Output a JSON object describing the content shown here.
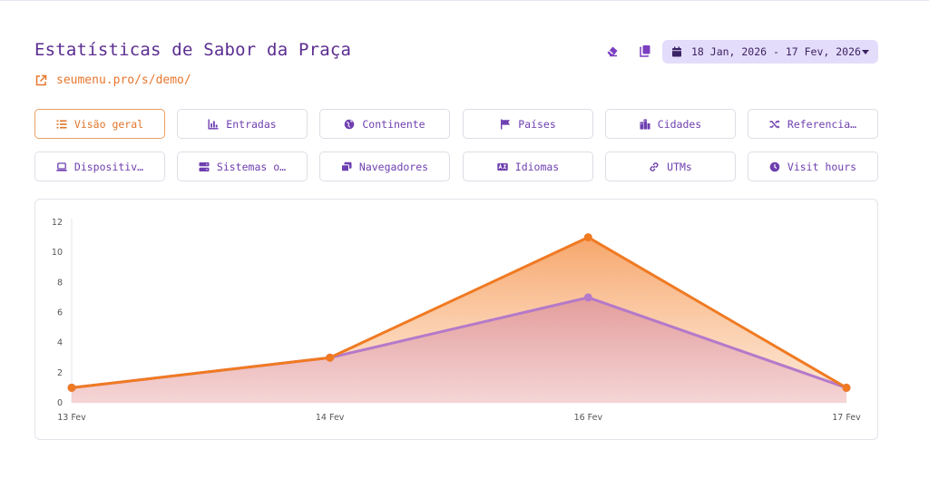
{
  "header": {
    "title": "Estatísticas de Sabor da Praça",
    "link_text": "seumenu.pro/s/demo/",
    "date_range": "18 Jan, 2026 - 17 Fev, 2026"
  },
  "tools": {
    "eraser_icon": "eraser-icon",
    "copy_icon": "copy-icon",
    "calendar_icon": "calendar-icon"
  },
  "tabs_row1": [
    {
      "label": "Visão geral",
      "icon": "list-icon",
      "active": true
    },
    {
      "label": "Entradas",
      "icon": "bar-chart-icon",
      "active": false
    },
    {
      "label": "Continente",
      "icon": "globe-icon",
      "active": false
    },
    {
      "label": "Países",
      "icon": "flag-icon",
      "active": false
    },
    {
      "label": "Cidades",
      "icon": "city-icon",
      "active": false
    },
    {
      "label": "Referencia…",
      "icon": "shuffle-icon",
      "active": false
    }
  ],
  "tabs_row2": [
    {
      "label": "Dispositiv…",
      "icon": "laptop-icon",
      "active": false
    },
    {
      "label": "Sistemas o…",
      "icon": "server-icon",
      "active": false
    },
    {
      "label": "Navegadores",
      "icon": "windows-icon",
      "active": false
    },
    {
      "label": "Idiomas",
      "icon": "language-icon",
      "active": false
    },
    {
      "label": "UTMs",
      "icon": "link-icon",
      "active": false
    },
    {
      "label": "Visit hours",
      "icon": "clock-icon",
      "active": false
    }
  ],
  "colors": {
    "accent": "#e8772e",
    "purple": "#6e3fb0",
    "series_orange": "#f07a22",
    "series_purple": "#b479c9"
  },
  "chart_data": {
    "type": "area",
    "categories": [
      "13 Fev",
      "14 Fev",
      "16 Fev",
      "17 Fev"
    ],
    "series": [
      {
        "values": [
          1,
          3,
          11,
          1
        ],
        "color": "#f07a22"
      },
      {
        "values": [
          1,
          3,
          7,
          1
        ],
        "color": "#b479c9"
      }
    ],
    "yticks": [
      0,
      2,
      4,
      6,
      8,
      10,
      12
    ],
    "ylim": [
      0,
      12
    ],
    "grid": false
  }
}
